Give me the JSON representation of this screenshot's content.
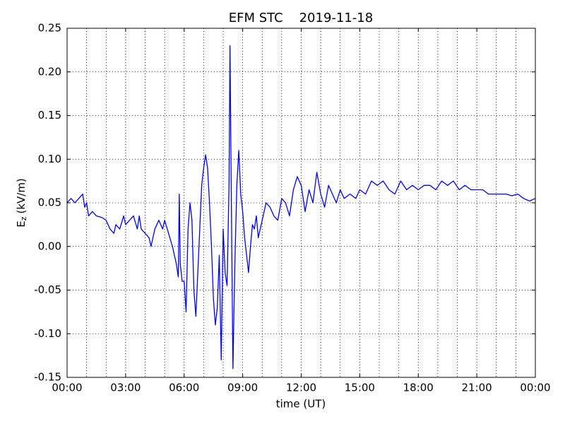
{
  "chart_data": {
    "type": "line",
    "title": "EFM STC    2019-11-18",
    "xlabel": "time (UT)",
    "ylabel": {
      "symbol": "E",
      "subscript": "z",
      "unit": "(kV/m)"
    },
    "x": [
      0.0,
      0.2,
      0.4,
      0.6,
      0.8,
      0.9,
      1.0,
      1.1,
      1.3,
      1.5,
      1.8,
      2.0,
      2.2,
      2.4,
      2.5,
      2.7,
      2.9,
      3.0,
      3.2,
      3.4,
      3.6,
      3.7,
      3.8,
      4.0,
      4.2,
      4.3,
      4.5,
      4.7,
      4.9,
      5.0,
      5.2,
      5.4,
      5.5,
      5.6,
      5.7,
      5.75,
      5.8,
      5.9,
      6.0,
      6.1,
      6.2,
      6.3,
      6.4,
      6.5,
      6.6,
      6.7,
      6.8,
      6.9,
      7.0,
      7.1,
      7.2,
      7.3,
      7.4,
      7.5,
      7.6,
      7.7,
      7.8,
      7.9,
      8.0,
      8.1,
      8.2,
      8.3,
      8.35,
      8.4,
      8.5,
      8.6,
      8.7,
      8.8,
      8.9,
      9.0,
      9.1,
      9.2,
      9.3,
      9.4,
      9.5,
      9.6,
      9.7,
      9.8,
      9.9,
      10.0,
      10.2,
      10.4,
      10.6,
      10.8,
      11.0,
      11.2,
      11.4,
      11.6,
      11.8,
      12.0,
      12.2,
      12.4,
      12.6,
      12.8,
      13.0,
      13.2,
      13.4,
      13.6,
      13.8,
      14.0,
      14.2,
      14.5,
      14.8,
      15.0,
      15.3,
      15.6,
      15.9,
      16.2,
      16.5,
      16.8,
      17.1,
      17.4,
      17.7,
      18.0,
      18.3,
      18.6,
      18.9,
      19.2,
      19.5,
      19.8,
      20.1,
      20.4,
      20.7,
      21.0,
      21.3,
      21.6,
      21.9,
      22.2,
      22.5,
      22.8,
      23.1,
      23.4,
      23.7,
      24.0
    ],
    "series": [
      {
        "name": "Ez",
        "color": "#0000ff",
        "values": [
          0.05,
          0.055,
          0.05,
          0.055,
          0.06,
          0.045,
          0.05,
          0.035,
          0.04,
          0.035,
          0.033,
          0.03,
          0.02,
          0.015,
          0.025,
          0.02,
          0.035,
          0.025,
          0.03,
          0.035,
          0.02,
          0.035,
          0.02,
          0.015,
          0.01,
          0.0,
          0.02,
          0.03,
          0.02,
          0.03,
          0.015,
          0.0,
          -0.01,
          -0.02,
          -0.035,
          0.06,
          -0.02,
          -0.04,
          -0.04,
          -0.075,
          0.02,
          0.05,
          0.03,
          -0.05,
          -0.08,
          -0.03,
          0.02,
          0.07,
          0.09,
          0.105,
          0.09,
          0.05,
          0.0,
          -0.06,
          -0.09,
          -0.07,
          -0.01,
          -0.13,
          0.02,
          -0.03,
          -0.045,
          0.07,
          0.23,
          0.1,
          -0.14,
          -0.02,
          0.07,
          0.11,
          0.06,
          0.04,
          0.01,
          -0.01,
          -0.03,
          0.0,
          0.025,
          0.02,
          0.035,
          0.01,
          0.02,
          0.03,
          0.05,
          0.045,
          0.035,
          0.03,
          0.055,
          0.05,
          0.035,
          0.065,
          0.08,
          0.07,
          0.04,
          0.065,
          0.05,
          0.085,
          0.06,
          0.045,
          0.07,
          0.06,
          0.05,
          0.065,
          0.055,
          0.06,
          0.055,
          0.065,
          0.06,
          0.075,
          0.07,
          0.075,
          0.065,
          0.06,
          0.075,
          0.065,
          0.07,
          0.065,
          0.07,
          0.07,
          0.065,
          0.075,
          0.07,
          0.075,
          0.065,
          0.07,
          0.065,
          0.065,
          0.065,
          0.06,
          0.06,
          0.06,
          0.06,
          0.058,
          0.06,
          0.055,
          0.052,
          0.055
        ]
      }
    ],
    "xlim": [
      0,
      24
    ],
    "xticks": [
      {
        "value": 0,
        "label": "00:00"
      },
      {
        "value": 3,
        "label": "03:00"
      },
      {
        "value": 6,
        "label": "06:00"
      },
      {
        "value": 9,
        "label": "09:00"
      },
      {
        "value": 12,
        "label": "12:00"
      },
      {
        "value": 15,
        "label": "15:00"
      },
      {
        "value": 18,
        "label": "18:00"
      },
      {
        "value": 21,
        "label": "21:00"
      },
      {
        "value": 24,
        "label": "00:00"
      }
    ],
    "xminor_ticks": [
      1,
      2,
      4,
      5,
      7,
      8,
      10,
      11,
      13,
      14,
      16,
      17,
      19,
      20,
      22,
      23
    ],
    "ylim": [
      -0.15,
      0.25
    ],
    "yticks": [
      {
        "value": -0.15,
        "label": "-0.15"
      },
      {
        "value": -0.1,
        "label": "-0.10"
      },
      {
        "value": -0.05,
        "label": "-0.05"
      },
      {
        "value": 0,
        "label": "0.00"
      },
      {
        "value": 0.05,
        "label": "0.05"
      },
      {
        "value": 0.1,
        "label": "0.10"
      },
      {
        "value": 0.15,
        "label": "0.15"
      },
      {
        "value": 0.2,
        "label": "0.20"
      },
      {
        "value": 0.25,
        "label": "0.25"
      }
    ],
    "grid": true
  }
}
